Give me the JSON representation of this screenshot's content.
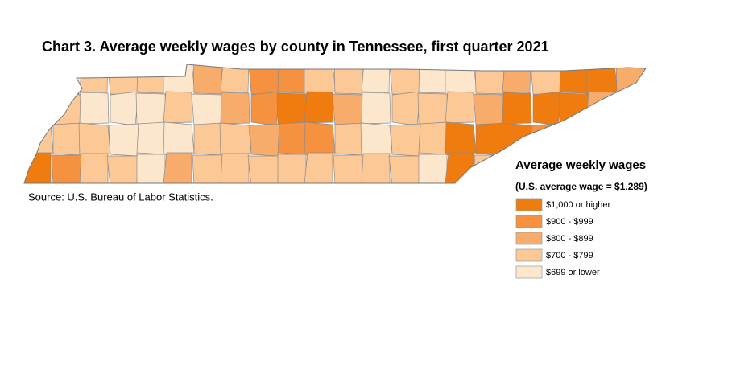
{
  "title": "Chart 3. Average weekly wages by county in Tennessee, first quarter 2021",
  "source": "Source: U.S. Bureau of Labor Statistics.",
  "legend": {
    "title": "Average weekly wages",
    "subtitle": "(U.S. average wage = $1,289)",
    "items": [
      {
        "label": "$1,000 or higher",
        "color": "#f07b0e"
      },
      {
        "label": "$900 - $999",
        "color": "#f5913f"
      },
      {
        "label": "$800 - $899",
        "color": "#f8ac6c"
      },
      {
        "label": "$700 - $799",
        "color": "#fbc896"
      },
      {
        "label": "$699 or lower",
        "color": "#fde7cc"
      }
    ]
  }
}
